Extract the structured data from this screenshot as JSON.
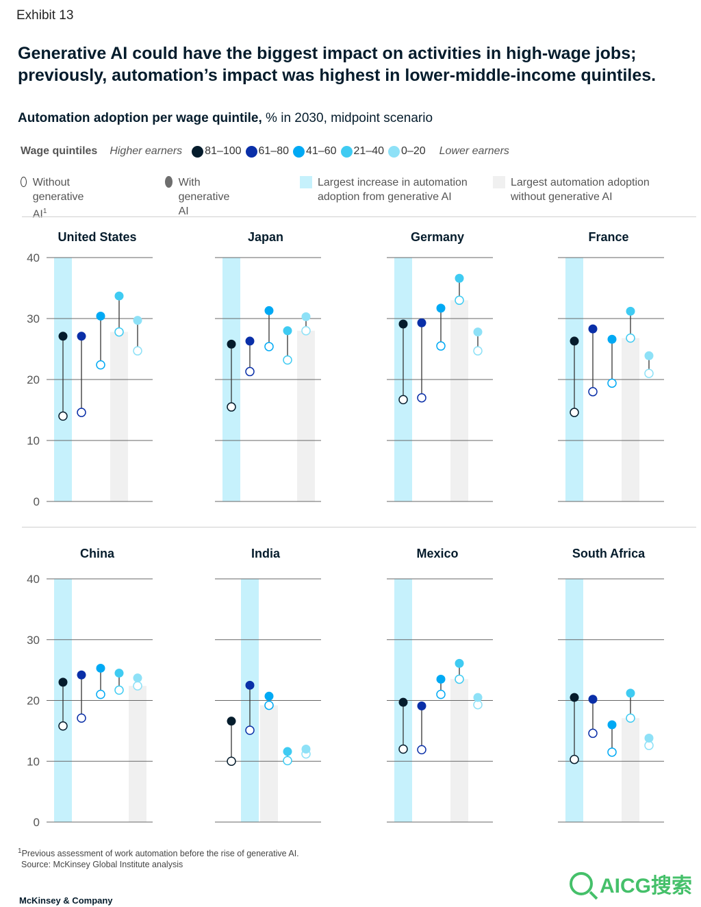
{
  "exhibit": "Exhibit 13",
  "title": "Generative AI could have the biggest impact on activities in high-wage jobs; previously, automation’s impact was highest in lower-middle-income quintiles.",
  "subtitle_bold": "Automation adoption per wage quintile,",
  "subtitle_rest": " % in 2030, midpoint scenario",
  "legend": {
    "wage_quintiles_label": "Wage quintiles",
    "higher_earners": "Higher earners",
    "lower_earners": "Lower earners",
    "quintiles": [
      {
        "label": "81–100",
        "color": "#051c2c"
      },
      {
        "label": "61–80",
        "color": "#0a2fa8"
      },
      {
        "label": "41–60",
        "color": "#00a9f4"
      },
      {
        "label": "21–40",
        "color": "#3fcbf2"
      },
      {
        "label": "0–20",
        "color": "#8ee1f7"
      }
    ],
    "without_genai": "Without generative AI",
    "without_genai_sup": "1",
    "with_genai": "With generative AI",
    "largest_increase": "Largest increase in automation adoption from generative AI",
    "largest_increase_color": "#c6f1fc",
    "largest_without": "Largest automation adoption without generative AI",
    "largest_without_color": "#f0f0f0"
  },
  "chart_data": [
    {
      "type": "dumbbell",
      "title": "United States",
      "ylim": [
        0,
        40
      ],
      "yticks": [
        0,
        10,
        20,
        30,
        40
      ],
      "without": [
        14.0,
        14.6,
        22.4,
        27.8,
        24.7
      ],
      "with": [
        27.1,
        27.1,
        30.4,
        33.7,
        29.7
      ],
      "highlight_increase": 0,
      "highlight_without": 3
    },
    {
      "type": "dumbbell",
      "title": "Japan",
      "ylim": [
        0,
        40
      ],
      "yticks": [
        0,
        10,
        20,
        30,
        40
      ],
      "without": [
        15.5,
        21.3,
        25.4,
        23.2,
        28.0
      ],
      "with": [
        25.8,
        26.3,
        31.3,
        28.0,
        30.3
      ],
      "highlight_increase": 0,
      "highlight_without": 4
    },
    {
      "type": "dumbbell",
      "title": "Germany",
      "ylim": [
        0,
        40
      ],
      "yticks": [
        0,
        10,
        20,
        30,
        40
      ],
      "without": [
        16.7,
        17.0,
        25.5,
        33.0,
        24.7
      ],
      "with": [
        29.1,
        29.3,
        31.7,
        36.6,
        27.8
      ],
      "highlight_increase": 0,
      "highlight_without": 3
    },
    {
      "type": "dumbbell",
      "title": "France",
      "ylim": [
        0,
        40
      ],
      "yticks": [
        0,
        10,
        20,
        30,
        40
      ],
      "without": [
        14.6,
        18.0,
        19.4,
        26.8,
        21.0
      ],
      "with": [
        26.3,
        28.3,
        26.6,
        31.2,
        23.9
      ],
      "highlight_increase": 0,
      "highlight_without": 3
    },
    {
      "type": "dumbbell",
      "title": "China",
      "ylim": [
        0,
        40
      ],
      "yticks": [
        0,
        10,
        20,
        30,
        40
      ],
      "without": [
        15.8,
        17.1,
        21.0,
        21.7,
        22.4
      ],
      "with": [
        23.0,
        24.2,
        25.3,
        24.5,
        23.7
      ],
      "highlight_increase": 0,
      "highlight_without": 4
    },
    {
      "type": "dumbbell",
      "title": "India",
      "ylim": [
        0,
        40
      ],
      "yticks": [
        0,
        10,
        20,
        30,
        40
      ],
      "without": [
        10.0,
        15.1,
        19.2,
        10.1,
        11.2
      ],
      "with": [
        16.6,
        22.5,
        20.7,
        11.6,
        12.0
      ],
      "highlight_increase": 1,
      "highlight_without": 2
    },
    {
      "type": "dumbbell",
      "title": "Mexico",
      "ylim": [
        0,
        40
      ],
      "yticks": [
        0,
        10,
        20,
        30,
        40
      ],
      "without": [
        12.0,
        11.9,
        21.0,
        23.5,
        19.3
      ],
      "with": [
        19.7,
        19.1,
        23.5,
        26.1,
        20.5
      ],
      "highlight_increase": 0,
      "highlight_without": 3
    },
    {
      "type": "dumbbell",
      "title": "South Africa",
      "ylim": [
        0,
        40
      ],
      "yticks": [
        0,
        10,
        20,
        30,
        40
      ],
      "without": [
        10.3,
        14.6,
        11.5,
        17.1,
        12.6
      ],
      "with": [
        20.5,
        20.2,
        16.0,
        21.2,
        13.8
      ],
      "highlight_increase": 0,
      "highlight_without": 3
    }
  ],
  "footnote_sup": "1",
  "footnote": "Previous assessment of work automation before the rise of generative AI.",
  "source": "Source: McKinsey Global Institute analysis",
  "brand": "McKinsey & Company",
  "watermark": "AICG搜索"
}
